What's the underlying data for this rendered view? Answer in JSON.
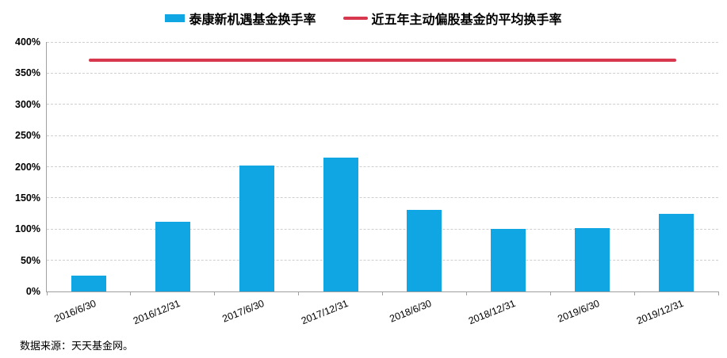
{
  "chart_data": {
    "type": "bar",
    "title": "",
    "categories": [
      "2016/6/30",
      "2016/12/31",
      "2017/6/30",
      "2017/12/31",
      "2018/6/30",
      "2018/12/31",
      "2019/6/30",
      "2019/12/31"
    ],
    "series": [
      {
        "name": "泰康新机遇基金换手率",
        "type": "bar",
        "color": "#0fa6e3",
        "values": [
          25,
          112,
          202,
          214,
          131,
          100,
          101,
          125
        ]
      },
      {
        "name": "近五年主动偏股基金的平均换手率",
        "type": "line",
        "color": "#d8384e",
        "values": [
          371,
          371,
          371,
          371,
          371,
          371,
          371,
          371
        ]
      }
    ],
    "ylabel": "",
    "xlabel": "",
    "ylim": [
      0,
      400
    ],
    "y_tick_step": 50,
    "y_ticks": [
      "0%",
      "50%",
      "100%",
      "150%",
      "200%",
      "250%",
      "300%",
      "350%",
      "400%"
    ],
    "grid": true,
    "legend_position": "top",
    "x_label_rotation_deg": -22
  },
  "colors": {
    "bar": "#0fa6e3",
    "line": "#d8384e",
    "axis": "#a0a0a0",
    "gridline": "#cfcfcf",
    "text": "#000000"
  },
  "footer": {
    "source_note": "数据来源：天天基金网。"
  }
}
